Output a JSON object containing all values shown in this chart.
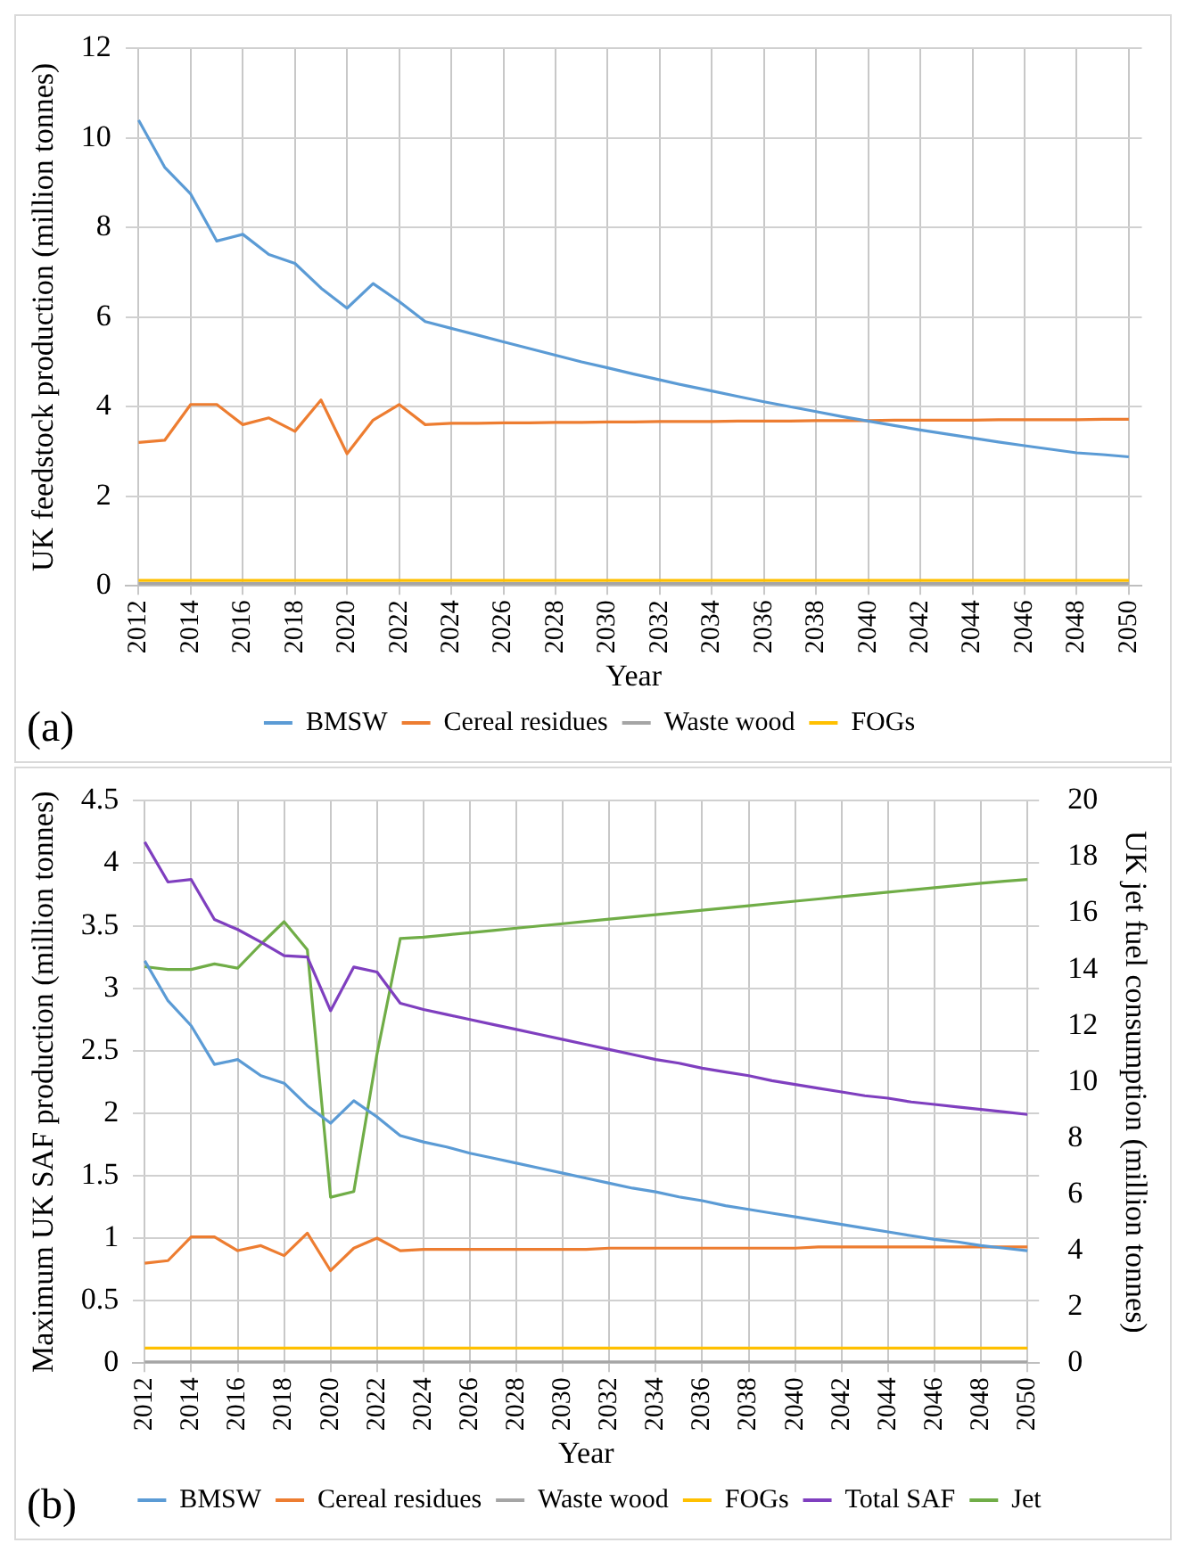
{
  "chart_data": [
    {
      "type": "line",
      "ylabel": "UK feedstock production (million tonnes)",
      "xlabel": "Year",
      "annotations": [
        "(a)"
      ],
      "categories": [
        "2012",
        null,
        "2014",
        null,
        "2016",
        null,
        "2018",
        null,
        "2020",
        null,
        "2022",
        null,
        "2024",
        null,
        "2026",
        null,
        "2028",
        null,
        "2030",
        null,
        "2032",
        null,
        "2034",
        null,
        "2036",
        null,
        "2038",
        null,
        "2040",
        null,
        "2042",
        null,
        "2044",
        null,
        "2046",
        null,
        "2048",
        null,
        "2050"
      ],
      "ylim": [
        0,
        12
      ],
      "yticks": [
        0,
        2,
        4,
        6,
        8,
        10,
        12
      ],
      "grid": true,
      "legend": "bottom",
      "marker": "none",
      "line_style": "solid",
      "series": [
        {
          "name": "BMSW",
          "color": "#5b9bd5",
          "values": [
            10.4,
            9.35,
            8.75,
            7.7,
            7.85,
            7.4,
            7.2,
            6.65,
            6.2,
            6.75,
            6.35,
            5.9,
            5.75,
            5.6,
            5.45,
            5.3,
            5.15,
            5.0,
            4.87,
            4.73,
            4.6,
            4.47,
            4.35,
            4.23,
            4.11,
            4.0,
            3.89,
            3.78,
            3.68,
            3.58,
            3.48,
            3.39,
            3.3,
            3.21,
            3.13,
            3.05,
            2.97,
            2.93,
            2.88
          ]
        },
        {
          "name": "Cereal residues",
          "color": "#ed7d31",
          "values": [
            3.2,
            3.25,
            4.05,
            4.05,
            3.6,
            3.75,
            3.45,
            4.15,
            2.95,
            3.7,
            4.05,
            3.6,
            3.63,
            3.63,
            3.64,
            3.64,
            3.65,
            3.65,
            3.66,
            3.66,
            3.67,
            3.67,
            3.67,
            3.68,
            3.68,
            3.68,
            3.69,
            3.69,
            3.69,
            3.7,
            3.7,
            3.7,
            3.7,
            3.71,
            3.71,
            3.71,
            3.71,
            3.72,
            3.72
          ]
        },
        {
          "name": "Waste wood",
          "color": "#a5a5a5",
          "values": [
            0.05,
            0.05,
            0.05,
            0.05,
            0.05,
            0.05,
            0.05,
            0.05,
            0.05,
            0.05,
            0.05,
            0.05,
            0.05,
            0.05,
            0.05,
            0.05,
            0.05,
            0.05,
            0.05,
            0.05,
            0.05,
            0.05,
            0.05,
            0.05,
            0.05,
            0.05,
            0.05,
            0.05,
            0.05,
            0.05,
            0.05,
            0.05,
            0.05,
            0.05,
            0.05,
            0.05,
            0.05,
            0.05,
            0.05
          ]
        },
        {
          "name": "FOGs",
          "color": "#ffc000",
          "values": [
            0.12,
            0.12,
            0.12,
            0.12,
            0.12,
            0.12,
            0.12,
            0.12,
            0.12,
            0.12,
            0.12,
            0.12,
            0.12,
            0.12,
            0.12,
            0.12,
            0.12,
            0.12,
            0.12,
            0.12,
            0.12,
            0.12,
            0.12,
            0.12,
            0.12,
            0.12,
            0.12,
            0.12,
            0.12,
            0.12,
            0.12,
            0.12,
            0.12,
            0.12,
            0.12,
            0.12,
            0.12,
            0.12,
            0.12
          ]
        }
      ]
    },
    {
      "type": "line",
      "ylabel": "Maximum UK SAF production (million tonnes)",
      "y2label": "UK jet fuel consumption (million tonnes)",
      "xlabel": "Year",
      "annotations": [
        "(b)"
      ],
      "categories": [
        "2012",
        null,
        "2014",
        null,
        "2016",
        null,
        "2018",
        null,
        "2020",
        null,
        "2022",
        null,
        "2024",
        null,
        "2026",
        null,
        "2028",
        null,
        "2030",
        null,
        "2032",
        null,
        "2034",
        null,
        "2036",
        null,
        "2038",
        null,
        "2040",
        null,
        "2042",
        null,
        "2044",
        null,
        "2046",
        null,
        "2048",
        null,
        "2050"
      ],
      "ylim": [
        0,
        4.5
      ],
      "yticks": [
        0,
        0.5,
        1,
        1.5,
        2,
        2.5,
        3,
        3.5,
        4,
        4.5
      ],
      "y2lim": [
        0,
        20
      ],
      "y2ticks": [
        0,
        2,
        4,
        6,
        8,
        10,
        12,
        14,
        16,
        18,
        20
      ],
      "grid": true,
      "legend": "bottom",
      "marker": "none",
      "line_style": "solid",
      "series": [
        {
          "name": "BMSW",
          "color": "#5b9bd5",
          "values": [
            3.22,
            2.9,
            2.7,
            2.39,
            2.43,
            2.3,
            2.24,
            2.06,
            1.92,
            2.1,
            1.97,
            1.82,
            1.77,
            1.73,
            1.68,
            1.64,
            1.6,
            1.56,
            1.52,
            1.48,
            1.44,
            1.4,
            1.37,
            1.33,
            1.3,
            1.26,
            1.23,
            1.2,
            1.17,
            1.14,
            1.11,
            1.08,
            1.05,
            1.02,
            0.99,
            0.97,
            0.94,
            0.92,
            0.9
          ]
        },
        {
          "name": "Cereal residues",
          "color": "#ed7d31",
          "values": [
            0.8,
            0.82,
            1.01,
            1.01,
            0.9,
            0.94,
            0.86,
            1.04,
            0.74,
            0.92,
            1.0,
            0.9,
            0.91,
            0.91,
            0.91,
            0.91,
            0.91,
            0.91,
            0.91,
            0.91,
            0.92,
            0.92,
            0.92,
            0.92,
            0.92,
            0.92,
            0.92,
            0.92,
            0.92,
            0.93,
            0.93,
            0.93,
            0.93,
            0.93,
            0.93,
            0.93,
            0.93,
            0.93,
            0.93
          ]
        },
        {
          "name": "Waste wood",
          "color": "#a5a5a5",
          "values": [
            0.01,
            0.01,
            0.01,
            0.01,
            0.01,
            0.01,
            0.01,
            0.01,
            0.01,
            0.01,
            0.01,
            0.01,
            0.01,
            0.01,
            0.01,
            0.01,
            0.01,
            0.01,
            0.01,
            0.01,
            0.01,
            0.01,
            0.01,
            0.01,
            0.01,
            0.01,
            0.01,
            0.01,
            0.01,
            0.01,
            0.01,
            0.01,
            0.01,
            0.01,
            0.01,
            0.01,
            0.01,
            0.01,
            0.01
          ]
        },
        {
          "name": "FOGs",
          "color": "#ffc000",
          "values": [
            0.12,
            0.12,
            0.12,
            0.12,
            0.12,
            0.12,
            0.12,
            0.12,
            0.12,
            0.12,
            0.12,
            0.12,
            0.12,
            0.12,
            0.12,
            0.12,
            0.12,
            0.12,
            0.12,
            0.12,
            0.12,
            0.12,
            0.12,
            0.12,
            0.12,
            0.12,
            0.12,
            0.12,
            0.12,
            0.12,
            0.12,
            0.12,
            0.12,
            0.12,
            0.12,
            0.12,
            0.12,
            0.12,
            0.12
          ]
        },
        {
          "name": "Total SAF",
          "color": "#7f3fbf",
          "values": [
            4.17,
            3.85,
            3.87,
            3.55,
            3.47,
            3.37,
            3.26,
            3.25,
            2.82,
            3.17,
            3.13,
            2.88,
            2.83,
            2.79,
            2.75,
            2.71,
            2.67,
            2.63,
            2.59,
            2.55,
            2.51,
            2.47,
            2.43,
            2.4,
            2.36,
            2.33,
            2.3,
            2.26,
            2.23,
            2.2,
            2.17,
            2.14,
            2.12,
            2.09,
            2.07,
            2.05,
            2.03,
            2.01,
            1.99
          ]
        },
        {
          "name": "Jet",
          "color": "#70ad47",
          "axis": "y2",
          "values": [
            14.1,
            14.0,
            14.0,
            14.2,
            14.05,
            14.9,
            15.7,
            14.7,
            5.9,
            6.1,
            11.0,
            15.1,
            15.15,
            15.23,
            15.31,
            15.39,
            15.47,
            15.55,
            15.63,
            15.71,
            15.79,
            15.87,
            15.95,
            16.03,
            16.11,
            16.19,
            16.27,
            16.35,
            16.43,
            16.51,
            16.59,
            16.67,
            16.75,
            16.83,
            16.91,
            16.99,
            17.07,
            17.14,
            17.2
          ]
        }
      ]
    }
  ]
}
